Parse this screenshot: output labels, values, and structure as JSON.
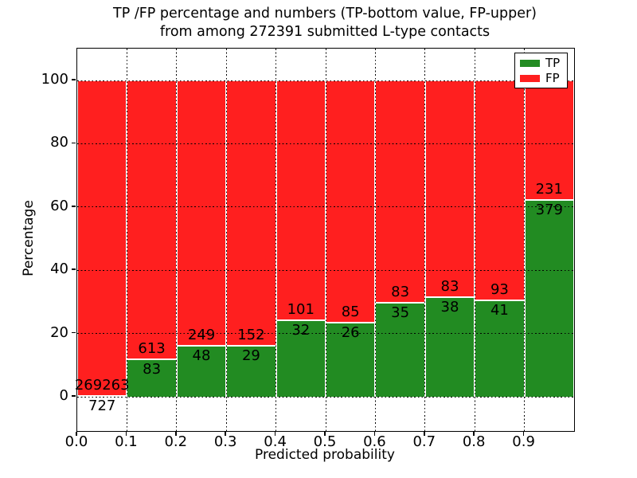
{
  "title": {
    "line1": "TP /FP percentage and numbers (TP-bottom value, FP-upper)",
    "line2": "from among 272391 submitted L-type contacts"
  },
  "axes": {
    "xlabel": "Predicted probability",
    "ylabel": "Percentage",
    "x_tick_labels": [
      "0.0",
      "0.1",
      "0.2",
      "0.3",
      "0.4",
      "0.5",
      "0.6",
      "0.7",
      "0.8",
      "0.9"
    ],
    "y_tick_labels": [
      "0",
      "20",
      "40",
      "60",
      "80",
      "100"
    ],
    "y_tick_values": [
      0,
      20,
      40,
      60,
      80,
      100
    ]
  },
  "legend": {
    "items": [
      {
        "label": "TP",
        "color": "#228b22"
      },
      {
        "label": "FP",
        "color": "#ff1f1f"
      }
    ]
  },
  "colors": {
    "tp_green": "#228b22",
    "fp_red": "#ff1f1f",
    "frame": "#000000",
    "background": "#ffffff"
  },
  "chart_data": {
    "type": "bar",
    "stacked": true,
    "title": "TP /FP percentage and numbers (TP-bottom value, FP-upper) from among 272391 submitted L-type contacts",
    "xlabel": "Predicted probability",
    "ylabel": "Percentage",
    "total_submitted_contacts": 272391,
    "bin_width": 0.1,
    "bin_starts": [
      0.0,
      0.1,
      0.2,
      0.3,
      0.4,
      0.5,
      0.6,
      0.7,
      0.8,
      0.9
    ],
    "xlim": [
      0.0,
      1.0
    ],
    "ylim": [
      -10.8,
      110.1
    ],
    "grid": true,
    "grid_style": "dotted",
    "legend_position": "upper right",
    "annotation_note": "TP count printed below segment boundary, FP count printed above it",
    "series": [
      {
        "name": "TP",
        "color": "#228b22",
        "counts": [
          727,
          83,
          48,
          29,
          32,
          26,
          35,
          38,
          41,
          379
        ],
        "percent": [
          0.27,
          11.93,
          16.16,
          16.02,
          24.06,
          23.42,
          29.66,
          31.4,
          30.6,
          62.13
        ]
      },
      {
        "name": "FP",
        "color": "#ff1f1f",
        "counts": [
          269263,
          613,
          249,
          152,
          101,
          85,
          83,
          83,
          93,
          231
        ],
        "percent": [
          99.73,
          88.07,
          83.84,
          83.98,
          75.94,
          76.58,
          70.34,
          68.6,
          69.4,
          37.87
        ]
      }
    ]
  }
}
